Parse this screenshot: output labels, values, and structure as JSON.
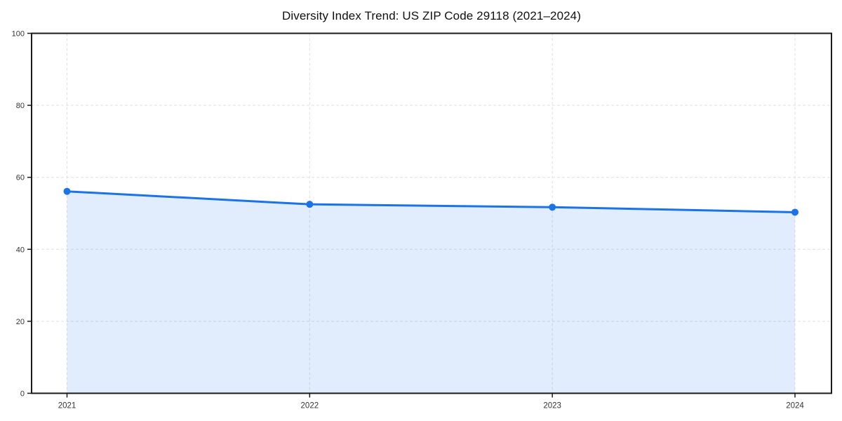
{
  "figure": {
    "background": "#ffffff"
  },
  "chart_data": {
    "type": "line",
    "style": "area-filled-line-with-markers",
    "title": "Diversity Index Trend: US ZIP Code 29118 (2021–2024)",
    "categories": [
      "2021",
      "2022",
      "2023",
      "2024"
    ],
    "values": [
      56.1,
      52.5,
      51.7,
      50.3
    ],
    "xlabel": "",
    "ylabel": "",
    "ylim": [
      0,
      100
    ],
    "y_ticks": [
      0,
      20,
      40,
      60,
      80,
      100
    ],
    "grid": "dashed-both-axes",
    "legend": "none",
    "colors": {
      "line": "#1a73e8",
      "marker": "#1a73e8",
      "area_fill": "rgba(26,115,232,0.13)",
      "grid": "#e0e0e0",
      "axis": "#1a1a1a",
      "tick_label": "#333333",
      "title": "#111111"
    }
  }
}
